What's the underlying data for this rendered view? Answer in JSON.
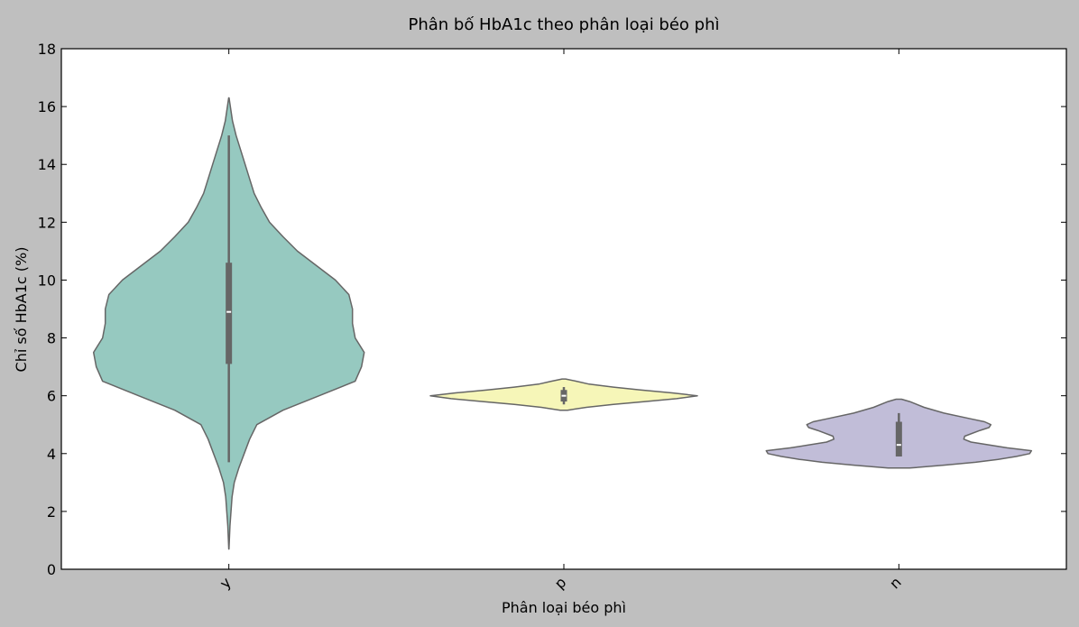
{
  "chart_data": {
    "type": "violin",
    "title": "Phân bố HbA1c theo phân loại béo phì",
    "xlabel": "Phân loại béo phì",
    "ylabel": "Chỉ số HbA1c (%)",
    "ylim": [
      0,
      18
    ],
    "yticks": [
      0,
      2,
      4,
      6,
      8,
      10,
      12,
      14,
      16,
      18
    ],
    "grid": false,
    "categories": [
      "y",
      "p",
      "n"
    ],
    "series": [
      {
        "category": "y",
        "color": "#96c9c0",
        "whisker_low": 3.7,
        "q1": 7.1,
        "median": 8.9,
        "q3": 10.6,
        "whisker_high": 15.0,
        "profile": [
          [
            0.7,
            0.1
          ],
          [
            1.5,
            1.2
          ],
          [
            2.5,
            3.5
          ],
          [
            3.0,
            6
          ],
          [
            3.5,
            11
          ],
          [
            4.0,
            17
          ],
          [
            4.5,
            23
          ],
          [
            5.0,
            31
          ],
          [
            5.5,
            60
          ],
          [
            6.0,
            100
          ],
          [
            6.5,
            140
          ],
          [
            7.0,
            147
          ],
          [
            7.5,
            150
          ],
          [
            8.0,
            140
          ],
          [
            8.5,
            137
          ],
          [
            9.0,
            137
          ],
          [
            9.5,
            133
          ],
          [
            10.0,
            118
          ],
          [
            10.5,
            97
          ],
          [
            11.0,
            76
          ],
          [
            11.5,
            60
          ],
          [
            12.0,
            45
          ],
          [
            12.5,
            36
          ],
          [
            13.0,
            28
          ],
          [
            13.5,
            23
          ],
          [
            14.0,
            18
          ],
          [
            14.5,
            13
          ],
          [
            15.0,
            8
          ],
          [
            15.5,
            4
          ],
          [
            16.3,
            0.2
          ]
        ]
      },
      {
        "category": "p",
        "color": "#f6f6b8",
        "whisker_low": 5.7,
        "q1": 5.8,
        "median": 6.0,
        "q3": 6.2,
        "whisker_high": 6.3,
        "profile": [
          [
            5.5,
            4
          ],
          [
            5.6,
            25
          ],
          [
            5.7,
            55
          ],
          [
            5.8,
            90
          ],
          [
            5.9,
            125
          ],
          [
            6.0,
            148
          ],
          [
            6.1,
            120
          ],
          [
            6.2,
            85
          ],
          [
            6.3,
            55
          ],
          [
            6.4,
            28
          ],
          [
            6.5,
            14
          ],
          [
            6.58,
            2
          ]
        ]
      },
      {
        "category": "n",
        "color": "#c1bdd8",
        "whisker_low": 3.9,
        "q1": 3.9,
        "median": 4.3,
        "q3": 5.1,
        "whisker_high": 5.4,
        "profile": [
          [
            3.5,
            12
          ],
          [
            3.6,
            50
          ],
          [
            3.7,
            85
          ],
          [
            3.8,
            110
          ],
          [
            3.9,
            130
          ],
          [
            4.0,
            145
          ],
          [
            4.1,
            147
          ],
          [
            4.2,
            120
          ],
          [
            4.4,
            80
          ],
          [
            4.5,
            72
          ],
          [
            4.6,
            73
          ],
          [
            4.8,
            90
          ],
          [
            4.9,
            100
          ],
          [
            5.0,
            102
          ],
          [
            5.1,
            95
          ],
          [
            5.2,
            80
          ],
          [
            5.4,
            50
          ],
          [
            5.6,
            28
          ],
          [
            5.8,
            12
          ],
          [
            5.88,
            3
          ]
        ]
      }
    ]
  }
}
